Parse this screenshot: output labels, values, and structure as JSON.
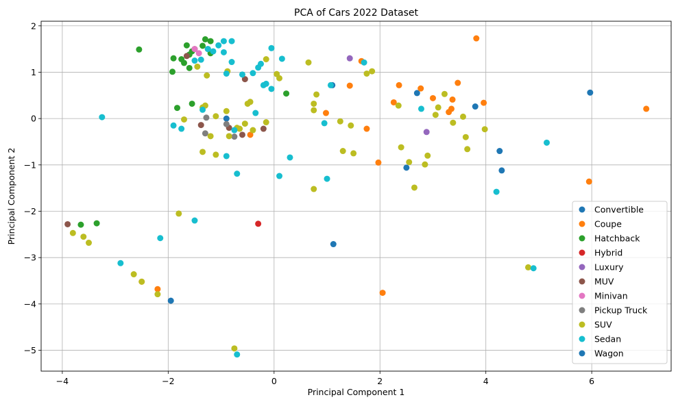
{
  "chart_data": {
    "type": "scatter",
    "title": "PCA of Cars 2022 Dataset",
    "xlabel": "Principal Component 1",
    "ylabel": "Principal Component 2",
    "xlim": [
      -4.4,
      7.5
    ],
    "ylim": [
      -5.45,
      2.1
    ],
    "xticks": [
      -4,
      -2,
      0,
      2,
      4,
      6
    ],
    "yticks": [
      -5,
      -4,
      -3,
      -2,
      -1,
      0,
      1,
      2
    ],
    "grid": true,
    "legend_position": "lower-right",
    "series": [
      {
        "name": "Convertible",
        "color": "#1f77b4",
        "points": [
          [
            -0.9,
            0.0
          ],
          [
            1.1,
            0.72
          ],
          [
            2.7,
            0.55
          ],
          [
            3.8,
            0.26
          ],
          [
            5.97,
            0.56
          ],
          [
            4.26,
            -0.7
          ],
          [
            4.3,
            -1.12
          ],
          [
            2.5,
            -1.06
          ],
          [
            1.12,
            -2.71
          ],
          [
            -1.95,
            -3.93
          ]
        ]
      },
      {
        "name": "Coupe",
        "color": "#ff7f0e",
        "points": [
          [
            3.82,
            1.73
          ],
          [
            1.65,
            1.24
          ],
          [
            1.43,
            0.71
          ],
          [
            2.36,
            0.72
          ],
          [
            2.77,
            0.65
          ],
          [
            3.47,
            0.77
          ],
          [
            2.26,
            0.35
          ],
          [
            3.0,
            0.44
          ],
          [
            3.37,
            0.41
          ],
          [
            3.96,
            0.34
          ],
          [
            3.35,
            0.21
          ],
          [
            3.3,
            0.14
          ],
          [
            0.98,
            0.12
          ],
          [
            1.75,
            -0.22
          ],
          [
            -0.45,
            -0.35
          ],
          [
            7.03,
            0.21
          ],
          [
            1.97,
            -0.95
          ],
          [
            5.95,
            -1.36
          ],
          [
            -2.2,
            -3.68
          ],
          [
            2.05,
            -3.76
          ],
          [
            -2.5,
            -3.52
          ]
        ]
      },
      {
        "name": "Hatchback",
        "color": "#2ca02c",
        "points": [
          [
            -2.55,
            1.49
          ],
          [
            -1.3,
            1.71
          ],
          [
            -1.2,
            1.67
          ],
          [
            -1.65,
            1.58
          ],
          [
            -1.35,
            1.57
          ],
          [
            -1.25,
            1.5
          ],
          [
            -1.55,
            1.45
          ],
          [
            -1.6,
            1.38
          ],
          [
            -1.2,
            1.41
          ],
          [
            -1.75,
            1.28
          ],
          [
            -1.9,
            1.3
          ],
          [
            -1.7,
            1.2
          ],
          [
            -1.6,
            1.09
          ],
          [
            -1.92,
            1.01
          ],
          [
            -1.55,
            0.32
          ],
          [
            -1.83,
            0.23
          ],
          [
            0.23,
            0.54
          ],
          [
            -3.35,
            -2.26
          ],
          [
            -3.65,
            -2.29
          ]
        ]
      },
      {
        "name": "Hybrid",
        "color": "#d62728",
        "points": [
          [
            -0.3,
            -2.27
          ]
        ]
      },
      {
        "name": "Luxury",
        "color": "#9467bd",
        "points": [
          [
            1.43,
            1.3
          ],
          [
            2.88,
            -0.29
          ]
        ]
      },
      {
        "name": "MUV",
        "color": "#8c564b",
        "points": [
          [
            -1.5,
            1.5
          ],
          [
            -1.65,
            1.35
          ],
          [
            -0.55,
            0.85
          ],
          [
            -1.38,
            -0.14
          ],
          [
            -0.6,
            -0.35
          ],
          [
            -0.85,
            -0.2
          ],
          [
            -0.2,
            -0.22
          ],
          [
            -3.9,
            -2.28
          ]
        ]
      },
      {
        "name": "Minivan",
        "color": "#e377c2",
        "points": [
          [
            -1.42,
            1.41
          ],
          [
            -1.5,
            1.5
          ]
        ]
      },
      {
        "name": "Pickup Truck",
        "color": "#7f7f7f",
        "points": [
          [
            -1.3,
            -0.32
          ],
          [
            -0.75,
            -0.39
          ],
          [
            -0.9,
            -0.12
          ],
          [
            -1.28,
            0.02
          ]
        ]
      },
      {
        "name": "SUV",
        "color": "#bcbd22",
        "points": [
          [
            -0.15,
            1.28
          ],
          [
            0.65,
            1.21
          ],
          [
            0.05,
            0.96
          ],
          [
            0.1,
            0.87
          ],
          [
            -0.88,
            1.02
          ],
          [
            -1.27,
            0.93
          ],
          [
            -1.45,
            1.12
          ],
          [
            -1.35,
            0.24
          ],
          [
            -1.3,
            0.28
          ],
          [
            -1.1,
            0.05
          ],
          [
            -0.9,
            0.16
          ],
          [
            -0.7,
            -0.2
          ],
          [
            -0.5,
            0.32
          ],
          [
            -0.45,
            0.36
          ],
          [
            -0.55,
            -0.11
          ],
          [
            -0.65,
            -0.22
          ],
          [
            -0.85,
            -0.38
          ],
          [
            -1.2,
            -0.38
          ],
          [
            -1.1,
            -0.78
          ],
          [
            -1.35,
            -0.72
          ],
          [
            -0.4,
            -0.25
          ],
          [
            -0.15,
            -0.08
          ],
          [
            -1.7,
            -0.02
          ],
          [
            0.75,
            0.32
          ],
          [
            0.8,
            0.52
          ],
          [
            0.75,
            0.18
          ],
          [
            1.25,
            -0.06
          ],
          [
            1.45,
            -0.15
          ],
          [
            1.3,
            -0.7
          ],
          [
            1.5,
            -0.75
          ],
          [
            1.75,
            0.97
          ],
          [
            1.85,
            1.02
          ],
          [
            2.35,
            0.28
          ],
          [
            2.4,
            -0.62
          ],
          [
            2.55,
            -0.94
          ],
          [
            2.65,
            -1.49
          ],
          [
            2.85,
            -0.99
          ],
          [
            2.9,
            -0.8
          ],
          [
            3.05,
            0.08
          ],
          [
            3.1,
            0.24
          ],
          [
            3.22,
            0.53
          ],
          [
            3.38,
            -0.09
          ],
          [
            3.57,
            0.04
          ],
          [
            3.62,
            -0.4
          ],
          [
            3.65,
            -0.66
          ],
          [
            3.98,
            -0.23
          ],
          [
            0.75,
            -1.52
          ],
          [
            -1.8,
            -2.05
          ],
          [
            -3.8,
            -2.47
          ],
          [
            -3.6,
            -2.55
          ],
          [
            -3.5,
            -2.68
          ],
          [
            -2.65,
            -3.36
          ],
          [
            -2.5,
            -3.52
          ],
          [
            -2.2,
            -3.79
          ],
          [
            -0.75,
            -4.96
          ],
          [
            4.8,
            -3.21
          ]
        ]
      },
      {
        "name": "Sedan",
        "color": "#17becf",
        "points": [
          [
            -1.25,
            1.5
          ],
          [
            -1.05,
            1.58
          ],
          [
            -0.95,
            1.67
          ],
          [
            -0.8,
            1.67
          ],
          [
            -0.05,
            1.52
          ],
          [
            0.15,
            1.29
          ],
          [
            1.7,
            1.21
          ],
          [
            -1.15,
            1.45
          ],
          [
            -0.95,
            1.43
          ],
          [
            -1.5,
            1.25
          ],
          [
            -1.38,
            1.27
          ],
          [
            -0.8,
            1.22
          ],
          [
            -0.3,
            1.1
          ],
          [
            -0.25,
            1.18
          ],
          [
            -0.4,
            0.98
          ],
          [
            -0.6,
            0.95
          ],
          [
            -0.9,
            0.97
          ],
          [
            -0.2,
            0.72
          ],
          [
            -0.15,
            0.75
          ],
          [
            -0.05,
            0.64
          ],
          [
            1.07,
            0.72
          ],
          [
            2.78,
            0.21
          ],
          [
            -1.35,
            0.19
          ],
          [
            -0.35,
            0.12
          ],
          [
            0.95,
            -0.1
          ],
          [
            -1.9,
            -0.15
          ],
          [
            -1.75,
            -0.22
          ],
          [
            -0.75,
            -0.25
          ],
          [
            -0.9,
            -0.81
          ],
          [
            -0.7,
            -1.19
          ],
          [
            0.3,
            -0.84
          ],
          [
            0.1,
            -1.24
          ],
          [
            1.0,
            -1.3
          ],
          [
            -3.25,
            0.03
          ],
          [
            -1.5,
            -2.2
          ],
          [
            -2.15,
            -2.58
          ],
          [
            -2.9,
            -3.12
          ],
          [
            4.9,
            -3.23
          ],
          [
            -0.7,
            -5.09
          ],
          [
            4.2,
            -1.58
          ],
          [
            5.15,
            -0.52
          ]
        ]
      },
      {
        "name": "Wagon",
        "color": "#1f77b4",
        "points": []
      }
    ]
  }
}
